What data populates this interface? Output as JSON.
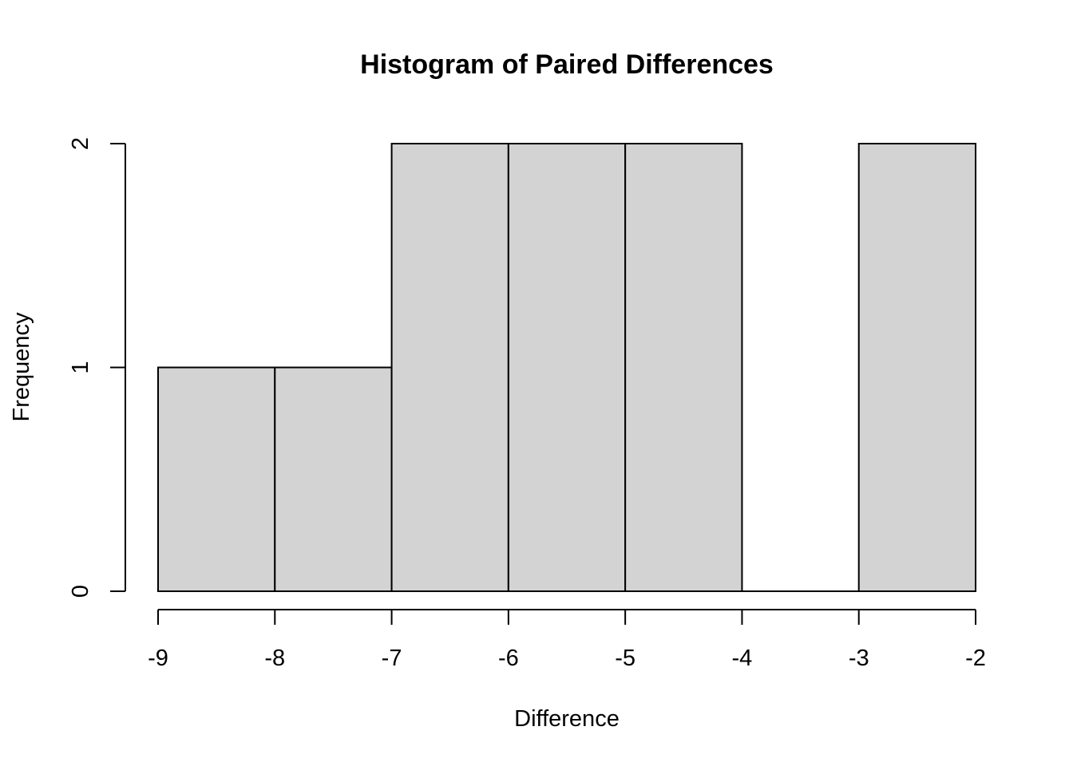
{
  "chart_data": {
    "type": "bar",
    "subtype": "histogram",
    "title": "Histogram of Paired Differences",
    "xlabel": "Difference",
    "ylabel": "Frequency",
    "bins": [
      {
        "from": -9,
        "to": -8,
        "count": 1
      },
      {
        "from": -8,
        "to": -7,
        "count": 1
      },
      {
        "from": -7,
        "to": -6,
        "count": 2
      },
      {
        "from": -6,
        "to": -5,
        "count": 2
      },
      {
        "from": -5,
        "to": -4,
        "count": 2
      },
      {
        "from": -4,
        "to": -3,
        "count": 0
      },
      {
        "from": -3,
        "to": -2,
        "count": 2
      }
    ],
    "x_ticks": [
      "-9",
      "-8",
      "-7",
      "-6",
      "-5",
      "-4",
      "-3",
      "-2"
    ],
    "y_ticks": [
      "0",
      "1",
      "2"
    ],
    "xlim": [
      -9,
      -2
    ],
    "ylim": [
      0,
      2
    ],
    "grid": false,
    "legend": "none",
    "bar_color": "#d3d3d3",
    "edge_color": "#000000"
  }
}
